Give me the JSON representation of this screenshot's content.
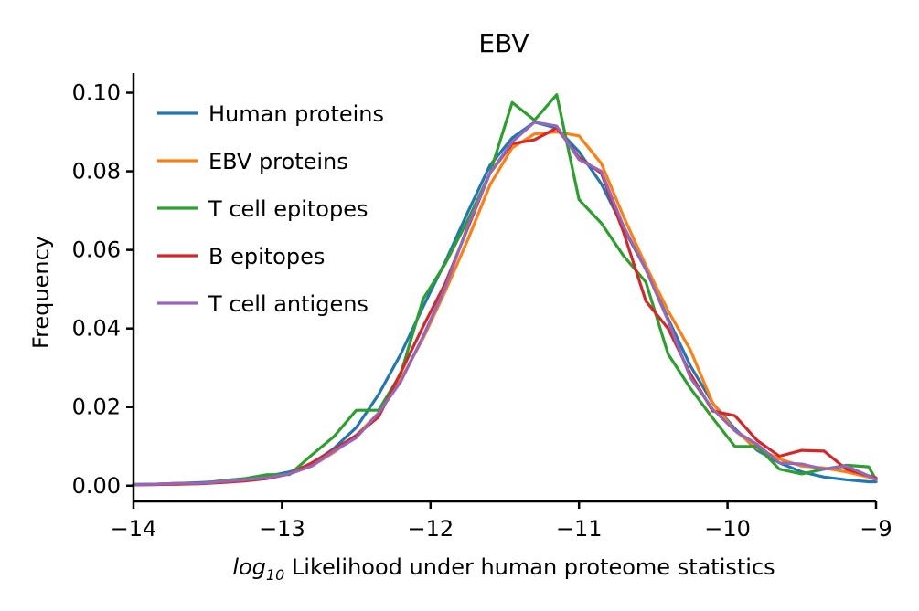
{
  "chart_data": {
    "type": "line",
    "title": "EBV",
    "xlabel": "Likelihood under human proteome statistics",
    "xlabel_math": "log",
    "xlabel_sub": "10",
    "ylabel": "Frequency",
    "xlim": [
      -14,
      -9
    ],
    "ylim": [
      -0.004,
      0.105
    ],
    "xticks": [
      -14,
      -13,
      -12,
      -11,
      -10,
      -9
    ],
    "xtick_labels": [
      "−14",
      "−13",
      "−12",
      "−11",
      "−10",
      "−9"
    ],
    "yticks": [
      0.0,
      0.02,
      0.04,
      0.06,
      0.08,
      0.1
    ],
    "ytick_labels": [
      "0.00",
      "0.02",
      "0.04",
      "0.06",
      "0.08",
      "0.10"
    ],
    "grid": false,
    "legend_position": "top-left",
    "series": [
      {
        "name": "Human proteins",
        "color": "#1f77b4",
        "x": [
          -14.0,
          -13.85,
          -13.7,
          -13.55,
          -13.4,
          -13.25,
          -13.1,
          -12.95,
          -12.8,
          -12.65,
          -12.5,
          -12.35,
          -12.2,
          -12.05,
          -11.9,
          -11.75,
          -11.6,
          -11.45,
          -11.3,
          -11.15,
          -11.0,
          -10.85,
          -10.7,
          -10.55,
          -10.4,
          -10.25,
          -10.1,
          -9.95,
          -9.8,
          -9.65,
          -9.5,
          -9.35,
          -9.2,
          -9.05,
          -9.0
        ],
        "y": [
          0.0003,
          0.0004,
          0.0006,
          0.0008,
          0.0011,
          0.0016,
          0.0024,
          0.0035,
          0.0055,
          0.0095,
          0.0148,
          0.0232,
          0.0335,
          0.0455,
          0.057,
          0.0695,
          0.0815,
          0.0885,
          0.0925,
          0.091,
          0.085,
          0.0768,
          0.0655,
          0.055,
          0.0425,
          0.0305,
          0.021,
          0.0145,
          0.009,
          0.0058,
          0.0035,
          0.0022,
          0.0015,
          0.001,
          0.001
        ]
      },
      {
        "name": "EBV proteins",
        "color": "#ff7f0e",
        "x": [
          -14.0,
          -13.85,
          -13.7,
          -13.55,
          -13.4,
          -13.25,
          -13.1,
          -12.95,
          -12.8,
          -12.65,
          -12.5,
          -12.35,
          -12.2,
          -12.05,
          -11.9,
          -11.75,
          -11.6,
          -11.45,
          -11.3,
          -11.15,
          -11.0,
          -10.85,
          -10.7,
          -10.55,
          -10.4,
          -10.25,
          -10.1,
          -9.95,
          -9.8,
          -9.65,
          -9.5,
          -9.35,
          -9.2,
          -9.05,
          -9.0
        ],
        "y": [
          0.0002,
          0.0003,
          0.0004,
          0.0006,
          0.0009,
          0.0013,
          0.002,
          0.003,
          0.005,
          0.0085,
          0.0128,
          0.0185,
          0.027,
          0.0375,
          0.0495,
          0.0625,
          0.0765,
          0.086,
          0.0895,
          0.09,
          0.089,
          0.082,
          0.0685,
          0.056,
          0.0445,
          0.0345,
          0.021,
          0.014,
          0.0095,
          0.0068,
          0.005,
          0.0045,
          0.0035,
          0.0022,
          0.0015
        ]
      },
      {
        "name": "T cell epitopes",
        "color": "#2ca02c",
        "x": [
          -14.0,
          -13.85,
          -13.7,
          -13.55,
          -13.4,
          -13.25,
          -13.1,
          -12.95,
          -12.8,
          -12.65,
          -12.5,
          -12.35,
          -12.2,
          -12.05,
          -11.9,
          -11.75,
          -11.6,
          -11.45,
          -11.3,
          -11.15,
          -11.0,
          -10.85,
          -10.7,
          -10.55,
          -10.4,
          -10.25,
          -10.1,
          -9.95,
          -9.8,
          -9.65,
          -9.5,
          -9.35,
          -9.2,
          -9.05,
          -9.0
        ],
        "y": [
          0.0003,
          0.0004,
          0.0006,
          0.0006,
          0.0013,
          0.0018,
          0.0028,
          0.0028,
          0.0078,
          0.0125,
          0.0192,
          0.0192,
          0.0285,
          0.0475,
          0.0565,
          0.0675,
          0.0795,
          0.0975,
          0.093,
          0.0995,
          0.0728,
          0.0668,
          0.0585,
          0.0518,
          0.0335,
          0.0248,
          0.0172,
          0.01,
          0.01,
          0.0042,
          0.003,
          0.0042,
          0.0052,
          0.0048,
          0.0015
        ]
      },
      {
        "name": "B epitopes",
        "color": "#d62728",
        "x": [
          -14.0,
          -13.85,
          -13.7,
          -13.55,
          -13.4,
          -13.25,
          -13.1,
          -12.95,
          -12.8,
          -12.65,
          -12.5,
          -12.35,
          -12.2,
          -12.05,
          -11.9,
          -11.75,
          -11.6,
          -11.45,
          -11.3,
          -11.15,
          -11.0,
          -10.85,
          -10.7,
          -10.55,
          -10.4,
          -10.25,
          -10.1,
          -9.95,
          -9.8,
          -9.65,
          -9.5,
          -9.35,
          -9.2,
          -9.05,
          -9.0
        ],
        "y": [
          0.0002,
          0.0003,
          0.0004,
          0.0005,
          0.0008,
          0.0012,
          0.0018,
          0.003,
          0.0058,
          0.0092,
          0.0128,
          0.0175,
          0.0288,
          0.0405,
          0.0515,
          0.0655,
          0.0795,
          0.087,
          0.088,
          0.091,
          0.0835,
          0.0795,
          0.0645,
          0.047,
          0.04,
          0.0285,
          0.019,
          0.0178,
          0.0115,
          0.0075,
          0.009,
          0.0088,
          0.0042,
          0.0025,
          0.002
        ]
      },
      {
        "name": "T cell antigens",
        "color": "#9467bd",
        "x": [
          -14.0,
          -13.85,
          -13.7,
          -13.55,
          -13.4,
          -13.25,
          -13.1,
          -12.95,
          -12.8,
          -12.65,
          -12.5,
          -12.35,
          -12.2,
          -12.05,
          -11.9,
          -11.75,
          -11.6,
          -11.45,
          -11.3,
          -11.15,
          -11.0,
          -10.85,
          -10.7,
          -10.55,
          -10.4,
          -10.25,
          -10.1,
          -9.95,
          -9.8,
          -9.65,
          -9.5,
          -9.35,
          -9.2,
          -9.05,
          -9.0
        ],
        "y": [
          0.0003,
          0.0004,
          0.0006,
          0.0006,
          0.0011,
          0.0015,
          0.002,
          0.003,
          0.005,
          0.0088,
          0.0122,
          0.0185,
          0.0265,
          0.038,
          0.0505,
          0.066,
          0.0795,
          0.0875,
          0.0925,
          0.0915,
          0.083,
          0.08,
          0.066,
          0.055,
          0.042,
          0.0275,
          0.0195,
          0.014,
          0.0105,
          0.0058,
          0.0055,
          0.0042,
          0.005,
          0.0025,
          0.0015
        ]
      }
    ]
  }
}
